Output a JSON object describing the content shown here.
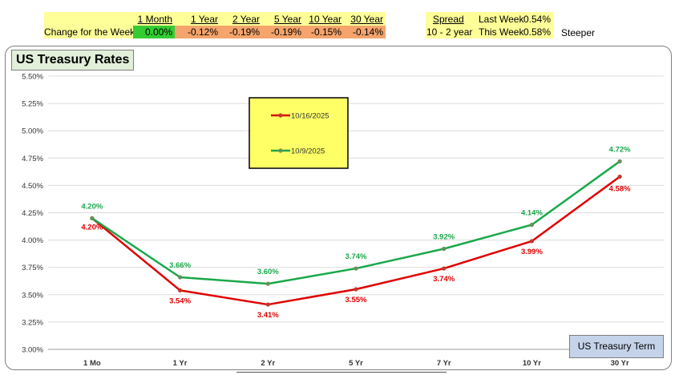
{
  "summary": {
    "row_label": "Change for the Week:",
    "columns": [
      {
        "header": "1 Month",
        "value": "0.00%"
      },
      {
        "header": "1 Year",
        "value": "-0.12%"
      },
      {
        "header": "2 Year",
        "value": "-0.19%"
      },
      {
        "header": "5 Year",
        "value": "-0.19%"
      },
      {
        "header": "10 Year",
        "value": "-0.15%"
      },
      {
        "header": "30 Year",
        "value": "-0.14%"
      }
    ],
    "colors": {
      "bg": "#ffff99",
      "green": "#33cc33",
      "orange": "#f4a46c"
    }
  },
  "spread": {
    "header": "Spread",
    "label": "10 - 2 year",
    "rows": [
      {
        "label": "Last Week",
        "value": "0.54%"
      },
      {
        "label": "This Week",
        "value": "0.58%"
      }
    ],
    "status": "Steeper"
  },
  "chart_data": {
    "type": "line",
    "title": "US Treasury Rates",
    "xlabel": "US Treasury Term",
    "ylabel": "",
    "categories": [
      "1 Mo",
      "1 Yr",
      "2 Yr",
      "5 Yr",
      "7 Yr",
      "10 Yr",
      "30 Yr"
    ],
    "ylim": [
      3.0,
      5.5
    ],
    "yticks": [
      "3.00%",
      "3.25%",
      "3.50%",
      "3.75%",
      "4.00%",
      "4.25%",
      "4.50%",
      "4.75%",
      "5.00%",
      "5.25%",
      "5.50%"
    ],
    "grid": true,
    "legend_position": "top-center",
    "series": [
      {
        "name": "10/16/2025",
        "color": "#e00000",
        "values": [
          4.2,
          3.54,
          3.41,
          3.55,
          3.74,
          3.99,
          4.58
        ],
        "labels": [
          "4.20%",
          "3.54%",
          "3.41%",
          "3.55%",
          "3.74%",
          "3.99%",
          "4.58%"
        ]
      },
      {
        "name": "10/9/2025",
        "color": "#19a84a",
        "values": [
          4.2,
          3.66,
          3.6,
          3.74,
          3.92,
          4.14,
          4.72
        ],
        "labels": [
          "4.20%",
          "3.66%",
          "3.60%",
          "3.74%",
          "3.92%",
          "4.14%",
          "4.72%"
        ]
      }
    ],
    "colors": {
      "legend_bg": "#ffff66",
      "title_bg": "#e2efd9",
      "term_bg": "#c5d3ea"
    }
  }
}
